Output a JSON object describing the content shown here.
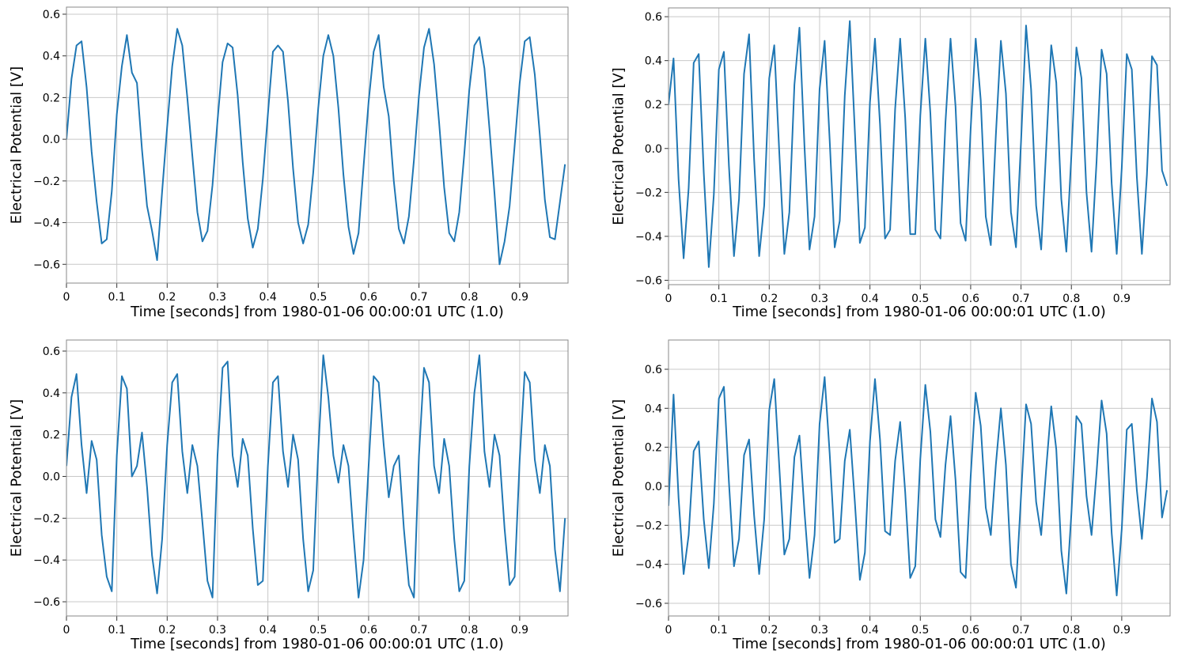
{
  "chart_data": [
    {
      "type": "line",
      "x_label": "Time [seconds] from 1980-01-06 00:00:01 UTC (1.0)",
      "y_label": "Electrical Potential [V]",
      "color": "#1f77b4",
      "grid": true,
      "xlim": [
        0,
        0.996
      ],
      "ylim": [
        -0.69,
        0.634
      ],
      "xticks": [
        0,
        0.1,
        0.2,
        0.3,
        0.4,
        0.5,
        0.6,
        0.7,
        0.8,
        0.9
      ],
      "yticks": [
        {
          "value": -0.6,
          "label": "−0.6"
        },
        {
          "value": -0.4,
          "label": "−0.4"
        },
        {
          "value": -0.2,
          "label": "−0.2"
        },
        {
          "value": 0,
          "label": "0.0"
        },
        0.2,
        0.4,
        0.6
      ],
      "x": [
        0,
        0.01,
        0.02,
        0.03,
        0.04,
        0.05,
        0.06,
        0.07,
        0.08,
        0.09,
        0.1,
        0.11,
        0.12,
        0.13,
        0.14,
        0.15,
        0.16,
        0.17,
        0.18,
        0.19,
        0.2,
        0.21,
        0.22,
        0.23,
        0.24,
        0.25,
        0.26,
        0.27,
        0.28,
        0.29,
        0.3,
        0.31,
        0.32,
        0.33,
        0.34,
        0.35,
        0.36,
        0.37,
        0.38,
        0.39,
        0.4,
        0.41,
        0.42,
        0.43,
        0.44,
        0.45,
        0.46,
        0.47,
        0.48,
        0.49,
        0.5,
        0.51,
        0.52,
        0.53,
        0.54,
        0.55,
        0.56,
        0.57,
        0.58,
        0.59,
        0.6,
        0.61,
        0.62,
        0.63,
        0.64,
        0.65,
        0.66,
        0.67,
        0.68,
        0.69,
        0.7,
        0.71,
        0.72,
        0.73,
        0.74,
        0.75,
        0.76,
        0.77,
        0.78,
        0.79,
        0.8,
        0.81,
        0.82,
        0.83,
        0.84,
        0.85,
        0.86,
        0.87,
        0.88,
        0.89,
        0.9,
        0.91,
        0.92,
        0.93,
        0.94,
        0.95,
        0.96,
        0.97,
        0.98,
        0.99
      ],
      "values": [
        0.0,
        0.29,
        0.45,
        0.47,
        0.25,
        -0.06,
        -0.3,
        -0.5,
        -0.48,
        -0.25,
        0.12,
        0.35,
        0.5,
        0.32,
        0.27,
        -0.05,
        -0.32,
        -0.44,
        -0.58,
        -0.25,
        0.06,
        0.35,
        0.53,
        0.45,
        0.2,
        -0.08,
        -0.35,
        -0.49,
        -0.44,
        -0.22,
        0.09,
        0.37,
        0.46,
        0.44,
        0.21,
        -0.11,
        -0.38,
        -0.52,
        -0.43,
        -0.19,
        0.12,
        0.42,
        0.45,
        0.42,
        0.18,
        -0.14,
        -0.4,
        -0.5,
        -0.41,
        -0.16,
        0.15,
        0.4,
        0.5,
        0.4,
        0.15,
        -0.17,
        -0.42,
        -0.55,
        -0.45,
        -0.13,
        0.18,
        0.42,
        0.5,
        0.25,
        0.11,
        -0.2,
        -0.43,
        -0.5,
        -0.37,
        -0.1,
        0.21,
        0.44,
        0.53,
        0.36,
        0.08,
        -0.23,
        -0.45,
        -0.49,
        -0.35,
        -0.07,
        0.24,
        0.45,
        0.49,
        0.34,
        0.05,
        -0.26,
        -0.6,
        -0.49,
        -0.32,
        -0.03,
        0.27,
        0.47,
        0.49,
        0.31,
        0.02,
        -0.29,
        -0.47,
        -0.48,
        -0.3,
        -0.12
      ]
    },
    {
      "type": "line",
      "x_label": "Time [seconds] from 1980-01-06 00:00:01 UTC (1.0)",
      "y_label": "Electrical Potential [V]",
      "color": "#1f77b4",
      "grid": true,
      "xlim": [
        0,
        0.996
      ],
      "ylim": [
        -0.62,
        0.64
      ],
      "xticks": [
        0,
        0.1,
        0.2,
        0.3,
        0.4,
        0.5,
        0.6,
        0.7,
        0.8,
        0.9
      ],
      "yticks": [
        {
          "value": -0.6,
          "label": "−0.6"
        },
        {
          "value": -0.4,
          "label": "−0.4"
        },
        {
          "value": -0.2,
          "label": "−0.2"
        },
        {
          "value": 0,
          "label": "0.0"
        },
        0.2,
        0.4,
        0.6
      ],
      "x": [
        0,
        0.01,
        0.02,
        0.03,
        0.04,
        0.05,
        0.06,
        0.07,
        0.08,
        0.09,
        0.1,
        0.11,
        0.12,
        0.13,
        0.14,
        0.15,
        0.16,
        0.17,
        0.18,
        0.19,
        0.2,
        0.21,
        0.22,
        0.23,
        0.24,
        0.25,
        0.26,
        0.27,
        0.28,
        0.29,
        0.3,
        0.31,
        0.32,
        0.33,
        0.34,
        0.35,
        0.36,
        0.37,
        0.38,
        0.39,
        0.4,
        0.41,
        0.42,
        0.43,
        0.44,
        0.45,
        0.46,
        0.47,
        0.48,
        0.49,
        0.5,
        0.51,
        0.52,
        0.53,
        0.54,
        0.55,
        0.56,
        0.57,
        0.58,
        0.59,
        0.6,
        0.61,
        0.62,
        0.63,
        0.64,
        0.65,
        0.66,
        0.67,
        0.68,
        0.69,
        0.7,
        0.71,
        0.72,
        0.73,
        0.74,
        0.75,
        0.76,
        0.77,
        0.78,
        0.79,
        0.8,
        0.81,
        0.82,
        0.83,
        0.84,
        0.85,
        0.86,
        0.87,
        0.88,
        0.89,
        0.9,
        0.91,
        0.92,
        0.93,
        0.94,
        0.95,
        0.96,
        0.97,
        0.98,
        0.99
      ],
      "values": [
        0.2,
        0.41,
        -0.14,
        -0.5,
        -0.18,
        0.39,
        0.43,
        -0.11,
        -0.54,
        -0.21,
        0.36,
        0.44,
        -0.08,
        -0.49,
        -0.23,
        0.34,
        0.52,
        -0.05,
        -0.49,
        -0.26,
        0.32,
        0.47,
        -0.02,
        -0.48,
        -0.29,
        0.29,
        0.55,
        0.01,
        -0.46,
        -0.31,
        0.27,
        0.49,
        0.04,
        -0.45,
        -0.33,
        0.24,
        0.58,
        0.08,
        -0.43,
        -0.36,
        0.21,
        0.5,
        0.11,
        -0.41,
        -0.37,
        0.18,
        0.5,
        0.14,
        -0.39,
        -0.39,
        0.15,
        0.5,
        0.16,
        -0.37,
        -0.41,
        0.12,
        0.5,
        0.19,
        -0.34,
        -0.42,
        0.09,
        0.5,
        0.22,
        -0.31,
        -0.44,
        0.06,
        0.49,
        0.25,
        -0.29,
        -0.45,
        0.03,
        0.56,
        0.27,
        -0.26,
        -0.46,
        0.0,
        0.47,
        0.3,
        -0.23,
        -0.47,
        -0.03,
        0.46,
        0.32,
        -0.2,
        -0.47,
        -0.06,
        0.45,
        0.34,
        -0.16,
        -0.48,
        -0.09,
        0.43,
        0.36,
        -0.13,
        -0.48,
        -0.12,
        0.42,
        0.38,
        -0.1,
        -0.17
      ]
    },
    {
      "type": "line",
      "x_label": "Time [seconds] from 1980-01-06 00:00:01 UTC (1.0)",
      "y_label": "Electrical Potential [V]",
      "color": "#1f77b4",
      "grid": true,
      "xlim": [
        0,
        0.996
      ],
      "ylim": [
        -0.668,
        0.653
      ],
      "xticks": [
        0,
        0.1,
        0.2,
        0.3,
        0.4,
        0.5,
        0.6,
        0.7,
        0.8,
        0.9
      ],
      "yticks": [
        {
          "value": -0.6,
          "label": "−0.6"
        },
        {
          "value": -0.4,
          "label": "−0.4"
        },
        {
          "value": -0.2,
          "label": "−0.2"
        },
        {
          "value": 0,
          "label": "0.0"
        },
        0.2,
        0.4,
        0.6
      ],
      "x": [
        0,
        0.01,
        0.02,
        0.03,
        0.04,
        0.05,
        0.06,
        0.07,
        0.08,
        0.09,
        0.1,
        0.11,
        0.12,
        0.13,
        0.14,
        0.15,
        0.16,
        0.17,
        0.18,
        0.19,
        0.2,
        0.21,
        0.22,
        0.23,
        0.24,
        0.25,
        0.26,
        0.27,
        0.28,
        0.29,
        0.3,
        0.31,
        0.32,
        0.33,
        0.34,
        0.35,
        0.36,
        0.37,
        0.38,
        0.39,
        0.4,
        0.41,
        0.42,
        0.43,
        0.44,
        0.45,
        0.46,
        0.47,
        0.48,
        0.49,
        0.5,
        0.51,
        0.52,
        0.53,
        0.54,
        0.55,
        0.56,
        0.57,
        0.58,
        0.59,
        0.6,
        0.61,
        0.62,
        0.63,
        0.64,
        0.65,
        0.66,
        0.67,
        0.68,
        0.69,
        0.7,
        0.71,
        0.72,
        0.73,
        0.74,
        0.75,
        0.76,
        0.77,
        0.78,
        0.79,
        0.8,
        0.81,
        0.82,
        0.83,
        0.84,
        0.85,
        0.86,
        0.87,
        0.88,
        0.89,
        0.9,
        0.91,
        0.92,
        0.93,
        0.94,
        0.95,
        0.96,
        0.97,
        0.98,
        0.99
      ],
      "values": [
        0.05,
        0.38,
        0.49,
        0.15,
        -0.08,
        0.17,
        0.08,
        -0.28,
        -0.48,
        -0.55,
        0.1,
        0.48,
        0.42,
        0.0,
        0.05,
        0.21,
        -0.05,
        -0.38,
        -0.56,
        -0.3,
        0.15,
        0.45,
        0.49,
        0.12,
        -0.08,
        0.15,
        0.05,
        -0.22,
        -0.5,
        -0.58,
        0.1,
        0.52,
        0.55,
        0.1,
        -0.05,
        0.18,
        0.1,
        -0.25,
        -0.52,
        -0.5,
        0.05,
        0.45,
        0.48,
        0.12,
        -0.05,
        0.2,
        0.08,
        -0.3,
        -0.55,
        -0.45,
        0.12,
        0.58,
        0.38,
        0.1,
        -0.03,
        0.15,
        0.05,
        -0.28,
        -0.58,
        -0.4,
        0.05,
        0.48,
        0.45,
        0.15,
        -0.1,
        0.05,
        0.1,
        -0.25,
        -0.52,
        -0.58,
        0.1,
        0.52,
        0.45,
        0.05,
        -0.08,
        0.18,
        0.05,
        -0.3,
        -0.55,
        -0.5,
        0.05,
        0.4,
        0.58,
        0.12,
        -0.05,
        0.2,
        0.1,
        -0.25,
        -0.52,
        -0.48,
        0.08,
        0.5,
        0.45,
        0.08,
        -0.08,
        0.15,
        0.05,
        -0.35,
        -0.55,
        -0.2
      ]
    },
    {
      "type": "line",
      "x_label": "Time [seconds] from 1980-01-06 00:00:01 UTC (1.0)",
      "y_label": "Electrical Potential [V]",
      "color": "#1f77b4",
      "grid": true,
      "xlim": [
        0,
        0.996
      ],
      "ylim": [
        -0.665,
        0.75
      ],
      "xticks": [
        0,
        0.1,
        0.2,
        0.3,
        0.4,
        0.5,
        0.6,
        0.7,
        0.8,
        0.9
      ],
      "yticks": [
        {
          "value": -0.6,
          "label": "−0.6"
        },
        {
          "value": -0.4,
          "label": "−0.4"
        },
        {
          "value": -0.2,
          "label": "−0.2"
        },
        {
          "value": 0,
          "label": "0.0"
        },
        0.2,
        0.4,
        0.6
      ],
      "x": [
        0,
        0.01,
        0.02,
        0.03,
        0.04,
        0.05,
        0.06,
        0.07,
        0.08,
        0.09,
        0.1,
        0.11,
        0.12,
        0.13,
        0.14,
        0.15,
        0.16,
        0.17,
        0.18,
        0.19,
        0.2,
        0.21,
        0.22,
        0.23,
        0.24,
        0.25,
        0.26,
        0.27,
        0.28,
        0.29,
        0.3,
        0.31,
        0.32,
        0.33,
        0.34,
        0.35,
        0.36,
        0.37,
        0.38,
        0.39,
        0.4,
        0.41,
        0.42,
        0.43,
        0.44,
        0.45,
        0.46,
        0.47,
        0.48,
        0.49,
        0.5,
        0.51,
        0.52,
        0.53,
        0.54,
        0.55,
        0.56,
        0.57,
        0.58,
        0.59,
        0.6,
        0.61,
        0.62,
        0.63,
        0.64,
        0.65,
        0.66,
        0.67,
        0.68,
        0.69,
        0.7,
        0.71,
        0.72,
        0.73,
        0.74,
        0.75,
        0.76,
        0.77,
        0.78,
        0.79,
        0.8,
        0.81,
        0.82,
        0.83,
        0.84,
        0.85,
        0.86,
        0.87,
        0.88,
        0.89,
        0.9,
        0.91,
        0.92,
        0.93,
        0.94,
        0.95,
        0.96,
        0.97,
        0.98,
        0.99
      ],
      "values": [
        -0.1,
        0.47,
        -0.06,
        -0.45,
        -0.25,
        0.18,
        0.23,
        -0.17,
        -0.42,
        -0.09,
        0.45,
        0.51,
        0.02,
        -0.41,
        -0.27,
        0.16,
        0.24,
        -0.15,
        -0.45,
        -0.17,
        0.39,
        0.55,
        0.1,
        -0.35,
        -0.27,
        0.15,
        0.26,
        -0.13,
        -0.47,
        -0.25,
        0.32,
        0.56,
        0.17,
        -0.29,
        -0.27,
        0.13,
        0.29,
        -0.08,
        -0.48,
        -0.34,
        0.23,
        0.55,
        0.24,
        -0.23,
        -0.25,
        0.13,
        0.33,
        -0.03,
        -0.47,
        -0.41,
        0.14,
        0.52,
        0.28,
        -0.17,
        -0.26,
        0.11,
        0.36,
        0.03,
        -0.44,
        -0.47,
        0.05,
        0.48,
        0.31,
        -0.11,
        -0.25,
        0.11,
        0.4,
        0.11,
        -0.4,
        -0.52,
        -0.05,
        0.42,
        0.32,
        -0.08,
        -0.25,
        0.09,
        0.41,
        0.19,
        -0.33,
        -0.55,
        -0.14,
        0.36,
        0.32,
        -0.05,
        -0.25,
        0.07,
        0.44,
        0.27,
        -0.24,
        -0.56,
        -0.22,
        0.29,
        0.32,
        -0.02,
        -0.27,
        0.04,
        0.45,
        0.33,
        -0.16,
        -0.02
      ]
    }
  ]
}
